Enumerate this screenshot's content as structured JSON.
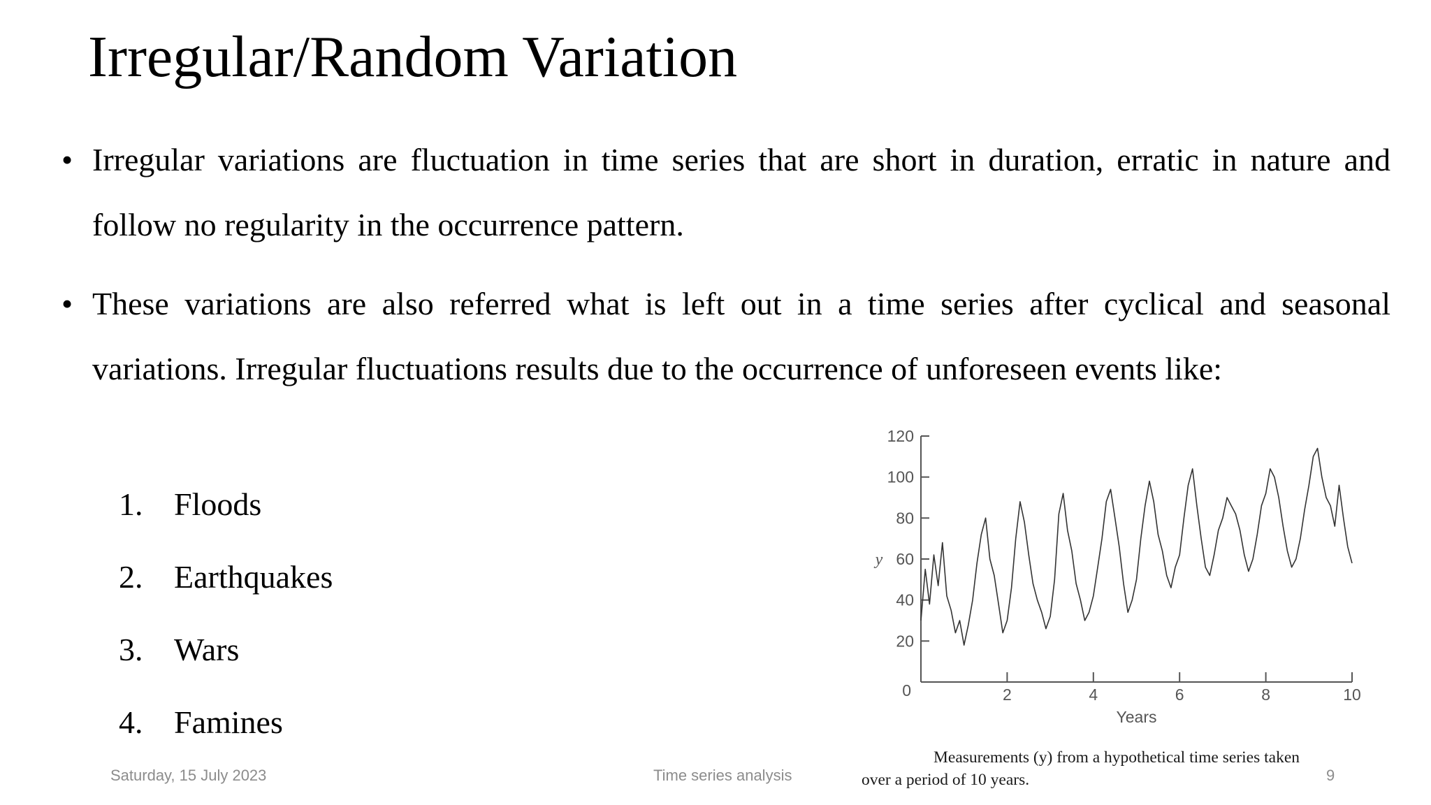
{
  "slide": {
    "title": "Irregular/Random Variation",
    "bullet_symbol": "•",
    "bullets": [
      "Irregular variations are fluctuation in time series that are short in duration, erratic in nature and follow no regularity in the occurrence pattern.",
      "These variations are also referred what is left out in a time series after cyclical and seasonal variations. Irregular fluctuations results due to the occurrence of unforeseen events like:"
    ],
    "list": [
      {
        "num": "1.",
        "label": "Floods"
      },
      {
        "num": "2.",
        "label": "Earthquakes"
      },
      {
        "num": "3.",
        "label": "Wars"
      },
      {
        "num": "4.",
        "label": "Famines"
      }
    ],
    "caption_line1": "Measurements (y) from a hypothetical time series taken",
    "caption_line2": "over a period of 10 years."
  },
  "footer": {
    "date": "Saturday, 15 July 2023",
    "topic": "Time series analysis",
    "page_number": "9"
  },
  "chart_data": {
    "type": "line",
    "title": "",
    "xlabel": "Years",
    "ylabel": "y",
    "xlim": [
      0,
      10
    ],
    "ylim": [
      0,
      120
    ],
    "x_ticks": [
      0,
      2,
      4,
      6,
      8,
      10
    ],
    "y_ticks": [
      20,
      40,
      60,
      80,
      100,
      120
    ],
    "y_zero_label": "0",
    "grid": false,
    "line_color": "#333333",
    "series": [
      {
        "x": [
          0.0,
          0.1,
          0.2,
          0.3,
          0.4,
          0.5,
          0.6,
          0.7,
          0.8,
          0.9,
          1.0,
          1.1,
          1.2,
          1.3,
          1.4,
          1.5,
          1.6,
          1.7,
          1.8,
          1.9,
          2.0,
          2.1,
          2.2,
          2.3,
          2.4,
          2.5,
          2.6,
          2.7,
          2.8,
          2.9,
          3.0,
          3.1,
          3.2,
          3.3,
          3.4,
          3.5,
          3.6,
          3.7,
          3.8,
          3.9,
          4.0,
          4.1,
          4.2,
          4.3,
          4.4,
          4.5,
          4.6,
          4.7,
          4.8,
          4.9,
          5.0,
          5.1,
          5.2,
          5.3,
          5.4,
          5.5,
          5.6,
          5.7,
          5.8,
          5.9,
          6.0,
          6.1,
          6.2,
          6.3,
          6.4,
          6.5,
          6.6,
          6.7,
          6.8,
          6.9,
          7.0,
          7.1,
          7.2,
          7.3,
          7.4,
          7.5,
          7.6,
          7.7,
          7.8,
          7.9,
          8.0,
          8.1,
          8.2,
          8.3,
          8.4,
          8.5,
          8.6,
          8.7,
          8.8,
          8.9,
          9.0,
          9.1,
          9.2,
          9.3,
          9.4,
          9.5,
          9.6,
          9.7,
          9.8,
          9.9,
          10.0
        ],
        "values": [
          30,
          55,
          38,
          62,
          47,
          68,
          42,
          35,
          24,
          30,
          18,
          28,
          40,
          58,
          72,
          80,
          60,
          52,
          38,
          24,
          30,
          46,
          70,
          88,
          78,
          62,
          48,
          40,
          34,
          26,
          32,
          50,
          82,
          92,
          74,
          64,
          48,
          40,
          30,
          34,
          42,
          56,
          70,
          88,
          94,
          80,
          66,
          48,
          34,
          40,
          50,
          70,
          86,
          98,
          88,
          72,
          64,
          52,
          46,
          56,
          62,
          80,
          96,
          104,
          86,
          70,
          56,
          52,
          62,
          74,
          80,
          90,
          86,
          82,
          74,
          62,
          54,
          60,
          72,
          86,
          92,
          104,
          100,
          90,
          76,
          64,
          56,
          60,
          70,
          84,
          96,
          110,
          114,
          100,
          90,
          86,
          76,
          96,
          80,
          66,
          58
        ]
      }
    ]
  }
}
